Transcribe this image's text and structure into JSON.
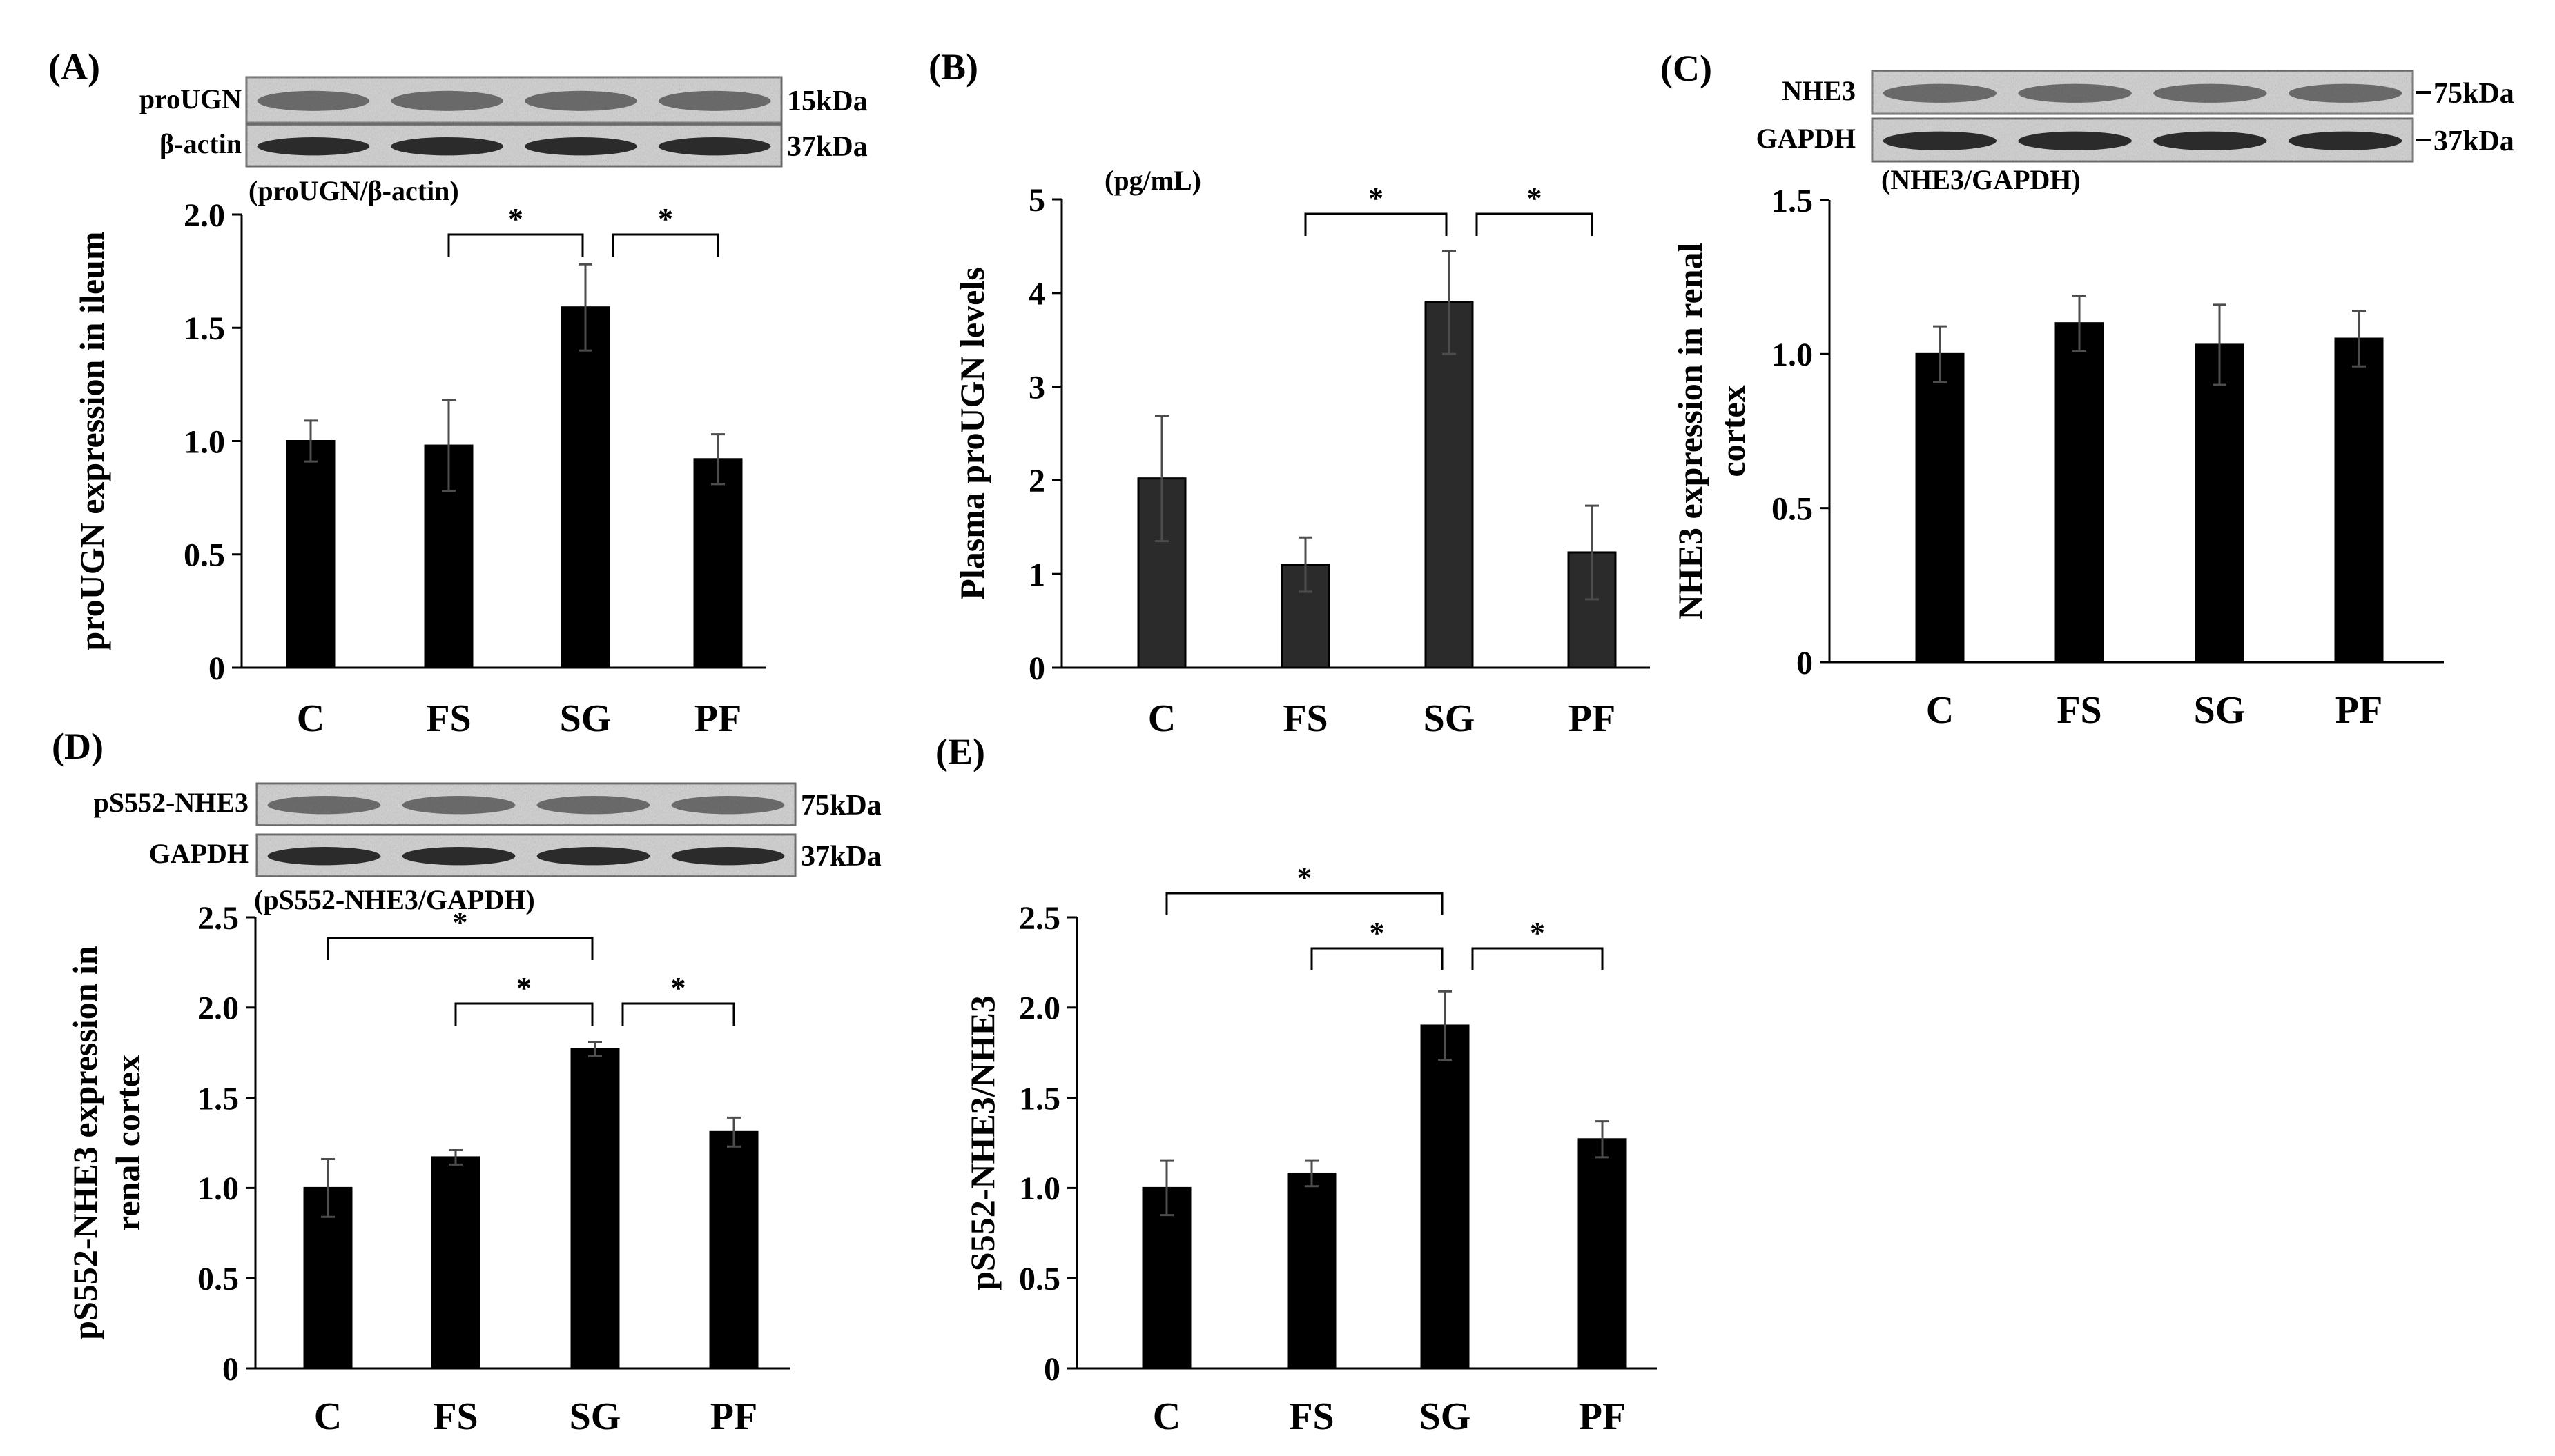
{
  "figure": {
    "groups": [
      "C",
      "FS",
      "SG",
      "PF"
    ]
  },
  "chart_data": [
    {
      "panel": "(A)",
      "type": "bar",
      "categories": [
        "C",
        "FS",
        "SG",
        "PF"
      ],
      "values": [
        1.0,
        0.98,
        1.59,
        0.92
      ],
      "errors": [
        0.09,
        0.2,
        0.19,
        0.11
      ],
      "ylabel": "proUGN expression in ileum",
      "unit_label": "(proUGN/β-actin)",
      "ylim": [
        0,
        2.0
      ],
      "yticks": [
        "0",
        "0.5",
        "1.0",
        "1.5",
        "2.0"
      ],
      "yticks_values": [
        0,
        0.5,
        1.0,
        1.5,
        2.0
      ],
      "bar_color": "#000000",
      "significance": [
        {
          "from": "FS",
          "to": "SG",
          "label": "*"
        },
        {
          "from": "SG",
          "to": "PF",
          "label": "*"
        }
      ],
      "blot": {
        "rows": [
          {
            "label": "proUGN",
            "marker": "15kDa"
          },
          {
            "label": "β-actin",
            "marker": "37kDa"
          }
        ]
      }
    },
    {
      "panel": "(B)",
      "type": "bar",
      "categories": [
        "C",
        "FS",
        "SG",
        "PF"
      ],
      "values": [
        2.02,
        1.1,
        3.9,
        1.23
      ],
      "errors": [
        0.67,
        0.29,
        0.55,
        0.5
      ],
      "ylabel": "Plasma proUGN levels",
      "unit_label": "(pg/mL)",
      "ylim": [
        0,
        5
      ],
      "yticks": [
        "0",
        "1",
        "2",
        "3",
        "4",
        "5"
      ],
      "yticks_values": [
        0,
        1,
        2,
        3,
        4,
        5
      ],
      "bar_color": "#2b2b2b",
      "significance": [
        {
          "from": "FS",
          "to": "SG",
          "label": "*"
        },
        {
          "from": "SG",
          "to": "PF",
          "label": "*"
        }
      ]
    },
    {
      "panel": "(C)",
      "type": "bar",
      "categories": [
        "C",
        "FS",
        "SG",
        "PF"
      ],
      "values": [
        1.0,
        1.1,
        1.03,
        1.05
      ],
      "errors": [
        0.09,
        0.09,
        0.13,
        0.09
      ],
      "ylabel": "NHE3 expression in renal cortex",
      "unit_label": "(NHE3/GAPDH)",
      "ylim": [
        0,
        1.5
      ],
      "yticks": [
        "0",
        "0.5",
        "1.0",
        "1.5"
      ],
      "yticks_values": [
        0,
        0.5,
        1.0,
        1.5
      ],
      "bar_color": "#000000",
      "significance": [],
      "blot": {
        "rows": [
          {
            "label": "NHE3",
            "marker": "75kDa"
          },
          {
            "label": "GAPDH",
            "marker": "37kDa"
          }
        ]
      }
    },
    {
      "panel": "(D)",
      "type": "bar",
      "categories": [
        "C",
        "FS",
        "SG",
        "PF"
      ],
      "values": [
        1.0,
        1.17,
        1.77,
        1.31
      ],
      "errors": [
        0.16,
        0.04,
        0.04,
        0.08
      ],
      "ylabel": "pS552-NHE3 expression in renal cortex",
      "unit_label": "(pS552-NHE3/GAPDH)",
      "ylim": [
        0,
        2.5
      ],
      "yticks": [
        "0",
        "0.5",
        "1.0",
        "1.5",
        "2.0",
        "2.5"
      ],
      "yticks_values": [
        0,
        0.5,
        1.0,
        1.5,
        2.0,
        2.5
      ],
      "bar_color": "#000000",
      "significance": [
        {
          "from": "C",
          "to": "SG",
          "label": "*"
        },
        {
          "from": "FS",
          "to": "SG",
          "label": "*"
        },
        {
          "from": "SG",
          "to": "PF",
          "label": "*"
        }
      ],
      "blot": {
        "rows": [
          {
            "label": "pS552-NHE3",
            "marker": "75kDa"
          },
          {
            "label": "GAPDH",
            "marker": "37kDa"
          }
        ]
      }
    },
    {
      "panel": "(E)",
      "type": "bar",
      "categories": [
        "C",
        "FS",
        "SG",
        "PF"
      ],
      "values": [
        1.0,
        1.08,
        1.9,
        1.27
      ],
      "errors": [
        0.15,
        0.07,
        0.19,
        0.1
      ],
      "ylabel": "pS552-NHE3/NHE3",
      "unit_label": "",
      "ylim": [
        0,
        2.5
      ],
      "yticks": [
        "0",
        "0.5",
        "1.0",
        "1.5",
        "2.0",
        "2.5"
      ],
      "yticks_values": [
        0,
        0.5,
        1.0,
        1.5,
        2.0,
        2.5
      ],
      "bar_color": "#000000",
      "significance": [
        {
          "from": "C",
          "to": "SG",
          "label": "*"
        },
        {
          "from": "FS",
          "to": "SG",
          "label": "*"
        },
        {
          "from": "SG",
          "to": "PF",
          "label": "*"
        }
      ]
    }
  ]
}
